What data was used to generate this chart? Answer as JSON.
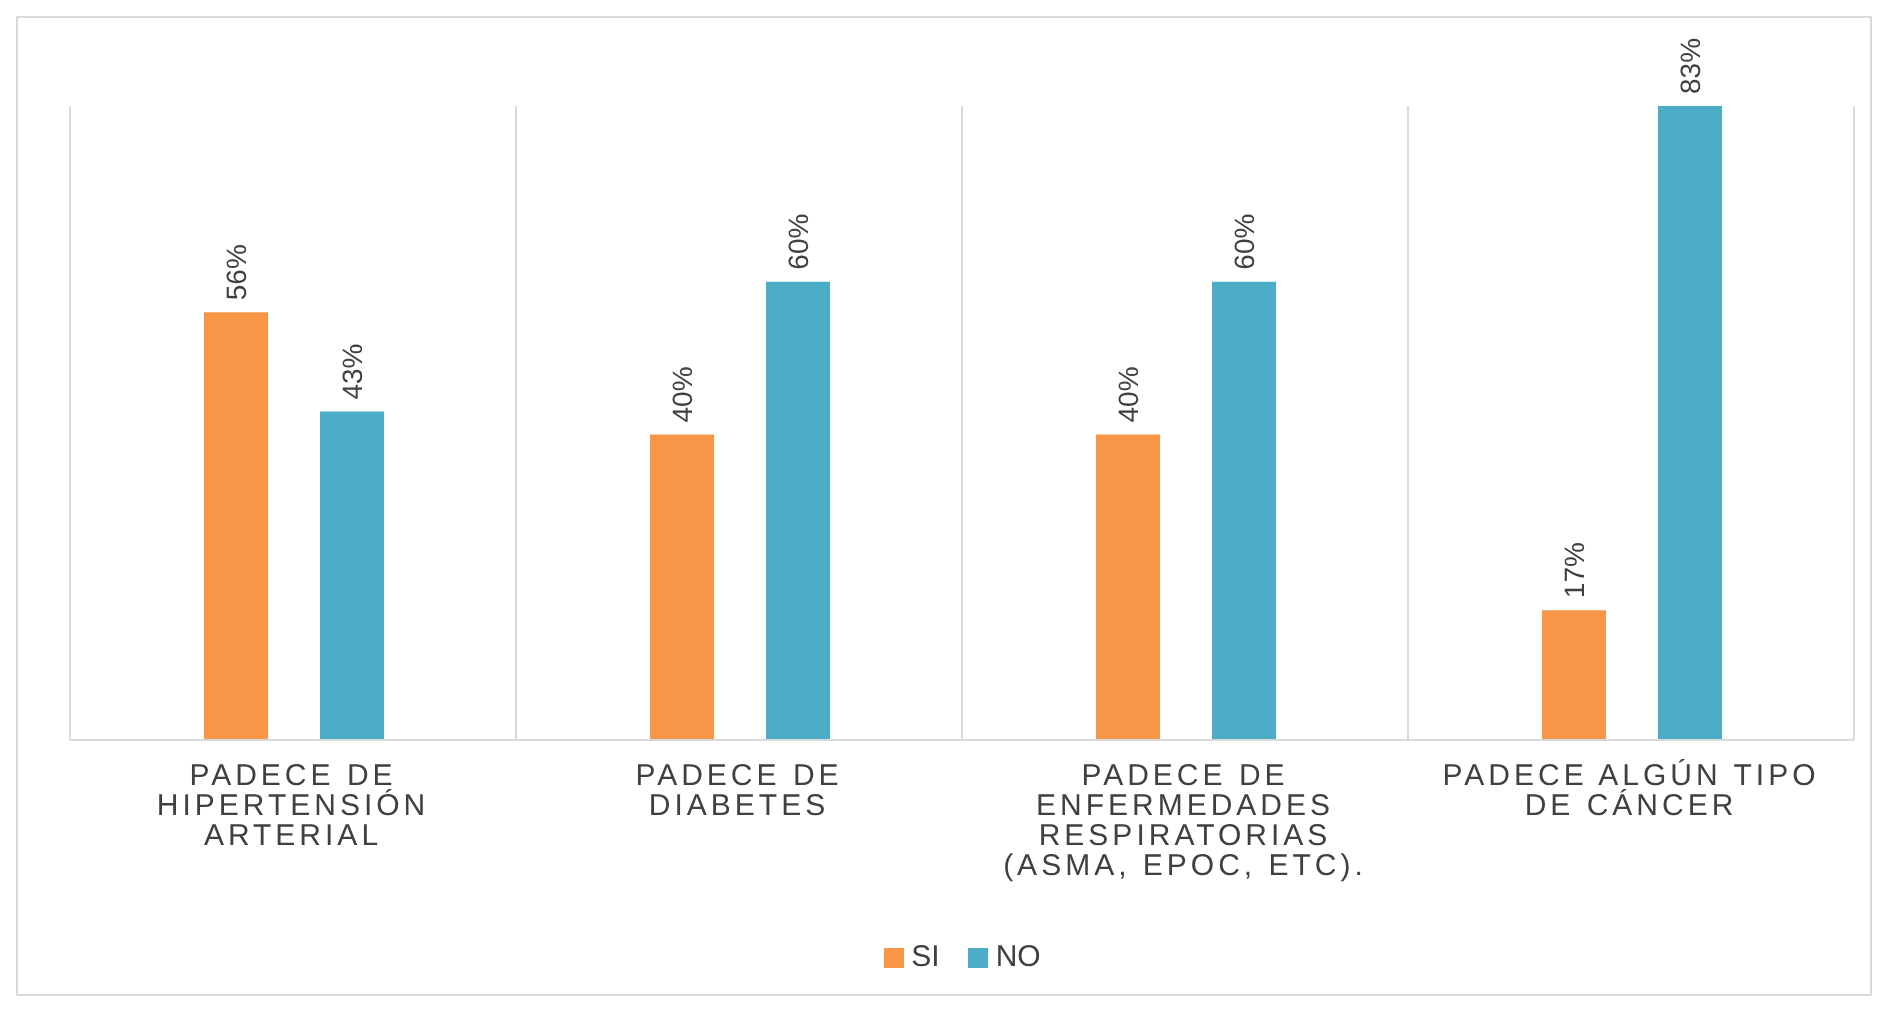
{
  "chart_data": {
    "type": "bar",
    "categories": [
      "PADECE DE HIPERTENSIÓN ARTERIAL",
      "PADECE DE DIABETES",
      "PADECE DE ENFERMEDADES RESPIRATORIAS (ASMA, EPOC, ETC).",
      "PADECE ALGÚN TIPO DE CÁNCER"
    ],
    "series": [
      {
        "name": "SI",
        "color": "#f79646",
        "values": [
          56,
          40,
          40,
          17
        ],
        "value_labels": [
          "56%",
          "40%",
          "40%",
          "17%"
        ]
      },
      {
        "name": "NO",
        "color": "#4bacc6",
        "values": [
          43,
          60,
          60,
          83
        ],
        "value_labels": [
          "43%",
          "60%",
          "60%",
          "83%"
        ]
      }
    ],
    "grid": "x",
    "legend": "bottom"
  }
}
